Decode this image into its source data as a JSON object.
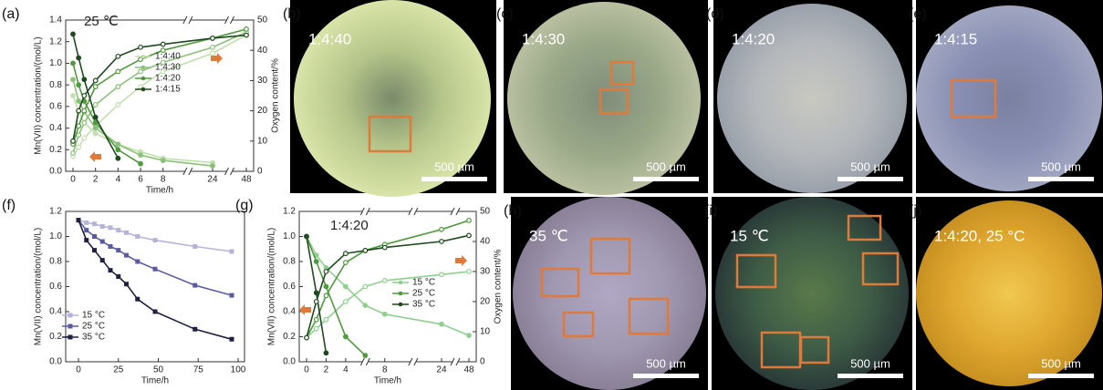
{
  "chart_data": [
    {
      "type": "line",
      "panel_label": "(a)",
      "annotation": "25 ℃",
      "broken_axis": true,
      "markers": "circle",
      "x": [
        0,
        0.5,
        1,
        2,
        4,
        6,
        8,
        24,
        48
      ],
      "xlim": [
        0,
        48
      ],
      "xticks": [
        0,
        2,
        4,
        6,
        8,
        24,
        48
      ],
      "xlabel": "Time/h",
      "ylabel": "Mn(VII) concentration/(mol/L)",
      "y2label": "Oxygen content/%",
      "ylim": [
        0,
        1.4
      ],
      "yticks": [
        {
          "value": 0,
          "label": "0.0"
        },
        0.2,
        0.4,
        0.6,
        0.8,
        {
          "value": 1,
          "label": "1.0"
        },
        1.2,
        1.4
      ],
      "y2lim": [
        0,
        50
      ],
      "y2ticks": [
        0,
        10,
        20,
        30,
        40,
        50
      ],
      "legend": "center right",
      "series": [
        {
          "name": "1:4:40",
          "color": "#c2dfae",
          "values": [
            0.7,
            0.55,
            0.45,
            0.35,
            0.25,
            0.18,
            0.12,
            0.08,
            null
          ],
          "y2_values": [
            5,
            8,
            11,
            15,
            22,
            28,
            33,
            39,
            45
          ]
        },
        {
          "name": "1:4:30",
          "color": "#8cc07a",
          "values": [
            0.85,
            0.65,
            0.55,
            0.4,
            0.25,
            0.15,
            0.1,
            0.05,
            null
          ],
          "y2_values": [
            6,
            12,
            16,
            22,
            28,
            33,
            36,
            41,
            46
          ]
        },
        {
          "name": "1:4:20",
          "color": "#4f9a3c",
          "values": [
            1.0,
            0.8,
            0.65,
            0.45,
            0.2,
            0.07,
            null,
            null,
            null
          ],
          "y2_values": [
            9,
            15,
            20,
            28,
            33,
            37,
            40,
            44,
            47
          ]
        },
        {
          "name": "1:4:15",
          "color": "#1f4a1f",
          "values": [
            1.27,
            1.05,
            0.85,
            0.5,
            0.12,
            null,
            null,
            null,
            null
          ],
          "y2_values": [
            10,
            20,
            25,
            30,
            38,
            41,
            42,
            44,
            45
          ]
        }
      ]
    },
    {
      "type": "line",
      "panel_label": "(f)",
      "markers": "square",
      "x": [
        0,
        5,
        10,
        15,
        20,
        25,
        30,
        37,
        48,
        73,
        96
      ],
      "xlim": [
        -8,
        104
      ],
      "xticks": [
        0,
        25,
        50,
        75,
        100
      ],
      "xlabel": "Time/h",
      "ylabel": "Mn(VII) concentration/(mol/L)",
      "ylim": [
        0,
        1.2
      ],
      "yticks": [
        {
          "value": 0,
          "label": "0.0"
        },
        0.2,
        0.4,
        0.6,
        0.8,
        {
          "value": 1,
          "label": "1.0"
        },
        1.2
      ],
      "legend": "lower left",
      "series": [
        {
          "name": "15 °C",
          "color": "#b4b4d8",
          "values": [
            1.13,
            1.11,
            1.1,
            1.08,
            1.07,
            1.05,
            1.03,
            1.0,
            0.97,
            0.92,
            0.88
          ]
        },
        {
          "name": "25 °C",
          "color": "#5a5aa0",
          "values": [
            1.13,
            1.05,
            1.0,
            0.96,
            0.92,
            0.89,
            0.85,
            0.8,
            0.74,
            0.61,
            0.53
          ]
        },
        {
          "name": "35 °C",
          "color": "#202040",
          "values": [
            1.13,
            0.97,
            0.89,
            0.81,
            0.73,
            0.68,
            0.62,
            0.5,
            0.4,
            0.26,
            0.18
          ]
        }
      ]
    },
    {
      "type": "line",
      "panel_label": "(g)",
      "annotation": "1:4:20",
      "broken_axis": true,
      "markers": "circle",
      "x": [
        0,
        1,
        2,
        4,
        6,
        8,
        24,
        48
      ],
      "xlim": [
        0,
        48
      ],
      "xticks": [
        0,
        2,
        4,
        8,
        24,
        48
      ],
      "xlabel": "Time/h",
      "ylabel": "Mn(VII) concentration/(mol/L)",
      "y2label": "Oxygen content/%",
      "ylim": [
        0,
        1.2
      ],
      "yticks": [
        {
          "value": 0,
          "label": "0.0"
        },
        0.2,
        0.4,
        0.6,
        0.8,
        {
          "value": 1,
          "label": "1.0"
        },
        1.2
      ],
      "y2lim": [
        0,
        50
      ],
      "y2ticks": [
        0,
        10,
        20,
        30,
        40,
        50
      ],
      "legend": "center right",
      "series": [
        {
          "name": "15 °C",
          "color": "#8fd08f",
          "values": [
            1.0,
            0.85,
            0.75,
            0.6,
            0.45,
            0.38,
            0.3,
            0.21
          ],
          "y2_values": [
            8,
            11,
            14,
            20,
            25,
            27,
            29,
            30
          ]
        },
        {
          "name": "25 °C",
          "color": "#4f9a3c",
          "values": [
            1.0,
            0.8,
            0.6,
            0.2,
            0.05,
            null,
            null,
            null
          ],
          "y2_values": [
            8,
            14,
            22,
            33,
            37,
            39,
            44,
            47
          ]
        },
        {
          "name": "35 °C",
          "color": "#1f4a1f",
          "values": [
            1.0,
            0.55,
            0.07,
            null,
            null,
            null,
            null,
            null
          ],
          "y2_values": [
            8,
            20,
            30,
            36,
            37,
            38,
            40,
            42
          ]
        }
      ]
    }
  ],
  "panels": [
    {
      "label": "(b)",
      "caption": "1:4:40",
      "scale_bar": "500 µm"
    },
    {
      "label": "(c)",
      "caption": "1:4:30",
      "scale_bar": "500 µm"
    },
    {
      "label": "(d)",
      "caption": "1:4:20",
      "scale_bar": "500 µm"
    },
    {
      "label": "(e)",
      "caption": "1:4:15",
      "scale_bar": "500 µm"
    },
    {
      "label": "(h)",
      "caption": "35 ℃",
      "scale_bar": "500 µm"
    },
    {
      "label": "(i)",
      "caption": "15 ℃",
      "scale_bar": "500 µm"
    },
    {
      "label": "(j)",
      "caption": "1:4:20, 25 °C",
      "scale_bar": "500 µm"
    }
  ]
}
